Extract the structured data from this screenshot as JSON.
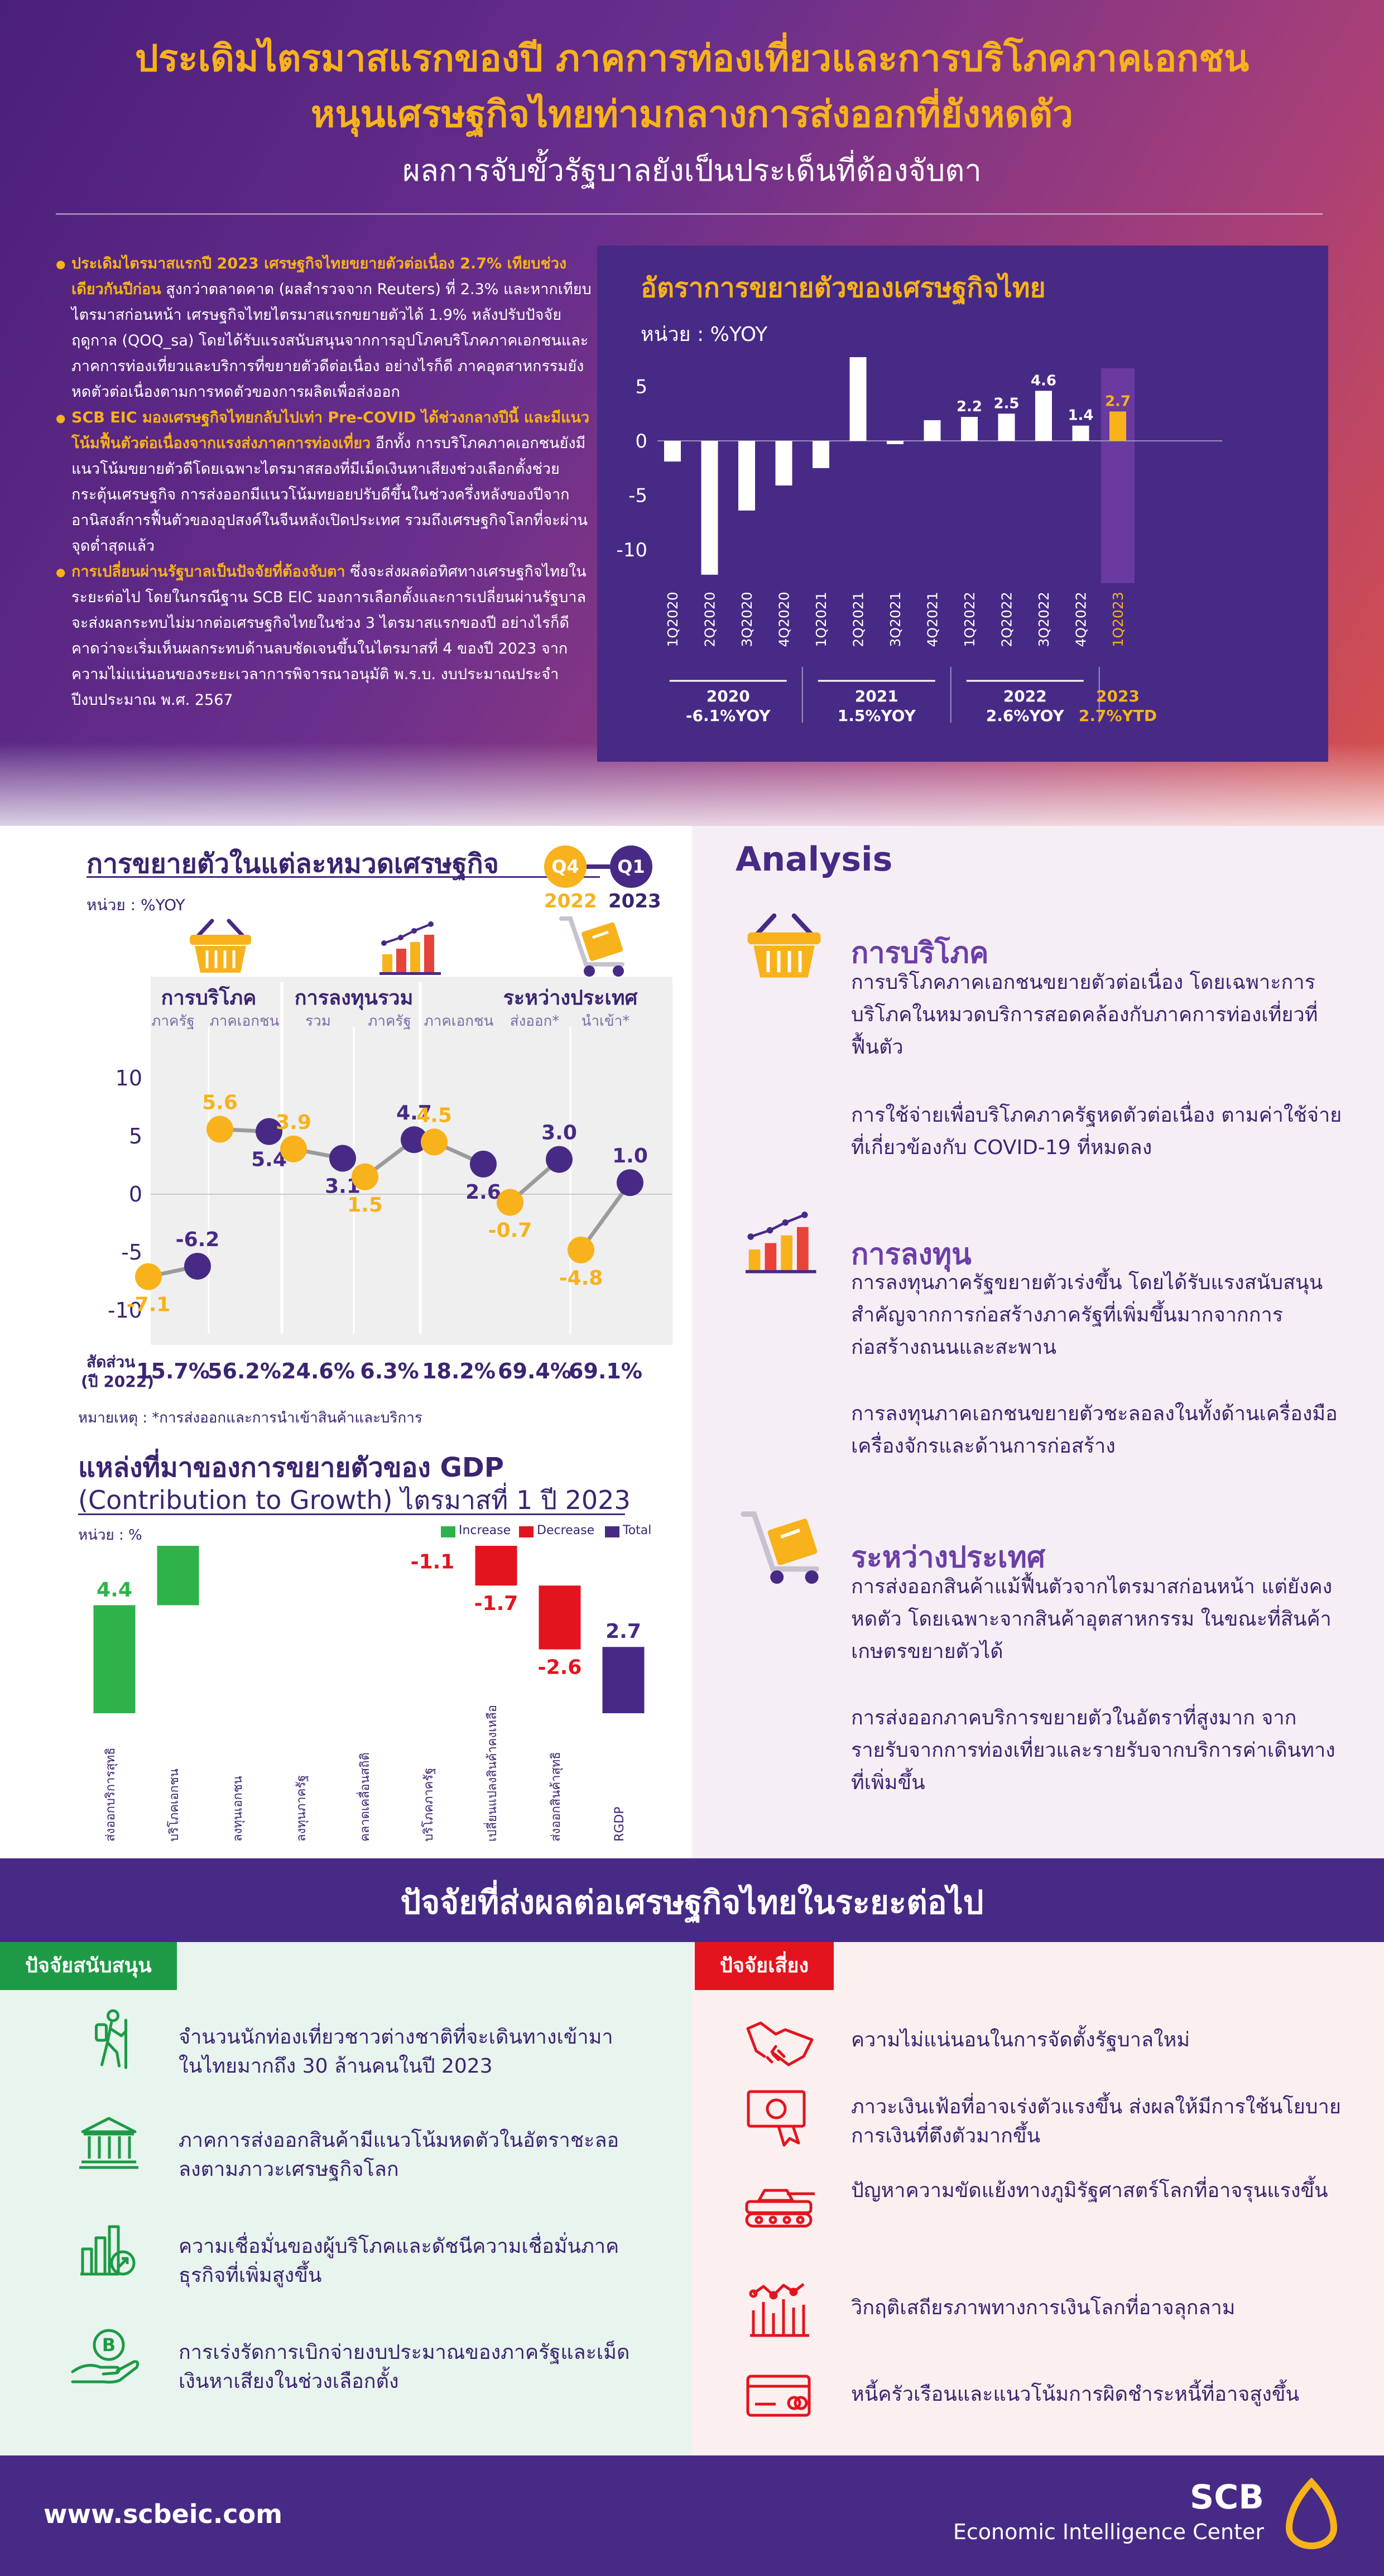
{
  "header": {
    "title_line1": "ประเดิมไตรมาสแรกของปี ภาคการท่องเที่ยวและการบริโภคภาคเอกชน",
    "title_line2": "หนุนเศรษฐกิจไทยท่ามกลางการส่งออกที่ยังหดตัว",
    "subtitle": "ผลการจับขั้วรัฐบาลยังเป็นประเด็นที่ต้องจับตา"
  },
  "bullets": [
    {
      "highlight": "ประเดิมไตรมาสแรกปี 2023 เศรษฐกิจไทยขยายตัวต่อเนื่อง 2.7% เทียบช่วงเดียวกันปีก่อน",
      "text": " สูงกว่าตลาดคาด (ผลสำรวจจาก Reuters) ที่ 2.3% และหากเทียบไตรมาสก่อนหน้า เศรษฐกิจไทยไตรมาสแรกขยายตัวได้ 1.9% หลังปรับปัจจัยฤดูกาล (QOQ_sa) โดยได้รับแรงสนับสนุนจากการอุปโภคบริโภคภาคเอกชนและภาคการท่องเที่ยวและบริการที่ขยายตัวดีต่อเนื่อง อย่างไรก็ดี ภาคอุตสาหกรรมยังหดตัวต่อเนื่องตามการหดตัวของการผลิตเพื่อส่งออก"
    },
    {
      "highlight": "SCB EIC มองเศรษฐกิจไทยกลับไปเท่า Pre-COVID ได้ช่วงกลางปีนี้ และมีแนวโน้มฟื้นตัวต่อเนื่องจากแรงส่งภาคการท่องเที่ยว",
      "text": " อีกทั้ง การบริโภคภาคเอกชนยังมีแนวโน้มขยายตัวดีโดยเฉพาะไตรมาสสองที่มีเม็ดเงินหาเสียงช่วงเลือกตั้งช่วยกระตุ้นเศรษฐกิจ การส่งออกมีแนวโน้มทยอยปรับดีขึ้นในช่วงครึ่งหลังของปีจากอานิสงส์การฟื้นตัวของอุปสงค์ในจีนหลังเปิดประเทศ รวมถึงเศรษฐกิจโลกที่จะผ่านจุดต่ำสุดแล้ว"
    },
    {
      "highlight": "การเปลี่ยนผ่านรัฐบาลเป็นปัจจัยที่ต้องจับตา",
      "text": " ซึ่งจะส่งผลต่อทิศทางเศรษฐกิจไทยในระยะต่อไป โดยในกรณีฐาน SCB EIC มองการเลือกตั้งและการเปลี่ยนผ่านรัฐบาลจะส่งผลกระทบไม่มากต่อเศรษฐกิจไทยในช่วง 3 ไตรมาสแรกของปี อย่างไรก็ดี คาดว่าจะเริ่มเห็นผลกระทบด้านลบชัดเจนขึ้นในไตรมาสที่ 4 ของปี 2023 จากความไม่แน่นอนของระยะเวลาการพิจารณาอนุมัติ พ.ร.บ. งบประมาณประจำปีงบประมาณ พ.ศ. 2567"
    }
  ],
  "chart_data": [
    {
      "type": "bar",
      "title": "อัตราการขยายตัวของเศรษฐกิจไทย",
      "unit": "หน่วย : %YOY",
      "ylim": [
        -13,
        8
      ],
      "yticks": [
        5,
        0,
        -5,
        -10
      ],
      "categories": [
        "1Q2020",
        "2Q2020",
        "3Q2020",
        "4Q2020",
        "1Q2021",
        "2Q2021",
        "3Q2021",
        "4Q2021",
        "1Q2022",
        "2Q2022",
        "3Q2022",
        "4Q2022",
        "1Q2023"
      ],
      "values": [
        -1.9,
        -12.3,
        -6.4,
        -4.1,
        -2.5,
        7.7,
        -0.3,
        1.9,
        2.2,
        2.5,
        4.6,
        1.4,
        2.7
      ],
      "data_labels": {
        "8": "2.2",
        "9": "2.5",
        "10": "4.6",
        "11": "1.4",
        "12": "2.7"
      },
      "groups": [
        {
          "year": "2020",
          "summary": "-6.1%YOY"
        },
        {
          "year": "2021",
          "summary": "1.5%YOY"
        },
        {
          "year": "2022",
          "summary": "2.6%YOY"
        },
        {
          "year": "2023",
          "summary": "2.7%YTD"
        }
      ],
      "colors": {
        "bar": "#ffffff",
        "highlight": "#f7b21c"
      }
    },
    {
      "type": "scatter",
      "title": "การขยายตัวในแต่ละหมวดเศรษฐกิจ",
      "unit": "หน่วย : %YOY",
      "legend": [
        "Q4 2022",
        "Q1 2023"
      ],
      "legend_parts": {
        "q4": "Q4",
        "q4_year": "2022",
        "q1": "Q1",
        "q1_year": "2023"
      },
      "ylim": [
        -12,
        12
      ],
      "yticks": [
        10,
        5,
        0,
        -5,
        -10
      ],
      "groups": [
        "การบริโภค",
        "การลงทุนรวม",
        "ระหว่างประเทศ"
      ],
      "categories": [
        "ภาครัฐ",
        "ภาคเอกชน",
        "รวม",
        "ภาครัฐ",
        "ภาคเอกชน",
        "ส่งออก*",
        "นำเข้า*"
      ],
      "series": [
        {
          "name": "Q4 2022",
          "values": [
            -7.1,
            5.6,
            3.9,
            1.5,
            4.5,
            -0.7,
            -4.8
          ]
        },
        {
          "name": "Q1 2023",
          "values": [
            -6.2,
            5.4,
            3.1,
            4.7,
            2.6,
            3.0,
            1.0
          ]
        }
      ],
      "share_label": "สัดส่วน (ปี 2022)",
      "share_label_line1": "สัดส่วน",
      "share_label_line2": "(ปี 2022)",
      "shares": [
        "15.7%",
        "56.2%",
        "24.6%",
        "6.3%",
        "18.2%",
        "69.4%",
        "69.1%"
      ],
      "note": "หมายเหตุ : *การส่งออกและการนำเข้าสินค้าและบริการ",
      "colors": {
        "q4": "#f7b21c",
        "q1": "#472a85"
      }
    },
    {
      "type": "bar",
      "title": "แหล่งที่มาของการขยายตัวของ GDP",
      "subtitle": "(Contribution to Growth) ไตรมาสที่ 1 ปี 2023",
      "unit": "หน่วย : %",
      "legend": [
        "Increase",
        "Decrease",
        "Total"
      ],
      "categories": [
        "ส่งออกบริการสุทธิ",
        "บริโภคเอกชน",
        "ลงทุนเอกชน",
        "ลงทุนภาครัฐ",
        "คลาดเคลื่อนสถิติ",
        "บริโภคภาครัฐ",
        "เปลี่ยนแปลงสินค้าคงเหลือ",
        "ส่งออกสินค้าสุทธิ",
        "RGDP"
      ],
      "values": [
        4.4,
        2.8,
        0.4,
        0.3,
        0.1,
        -1.1,
        -1.7,
        -2.6,
        2.7
      ],
      "colors": {
        "increase": "#2db34a",
        "decrease": "#e3141e",
        "total": "#472a85"
      }
    }
  ],
  "analysis": {
    "title": "Analysis",
    "sections": [
      {
        "heading": "การบริโภค",
        "icon": "basket-icon",
        "paragraphs": [
          "การบริโภคภาคเอกชนขยายตัวต่อเนื่อง โดยเฉพาะการบริโภคในหมวดบริการสอดคล้องกับภาคการท่องเที่ยวที่ฟื้นตัว",
          "การใช้จ่ายเพื่อบริโภคภาครัฐหดตัวต่อเนื่อง ตามค่าใช้จ่ายที่เกี่ยวข้องกับ COVID-19 ที่หมดลง"
        ]
      },
      {
        "heading": "การลงทุน",
        "icon": "investment-chart-icon",
        "paragraphs": [
          "การลงทุนภาครัฐขยายตัวเร่งขึ้น โดยได้รับแรงสนับสนุนสำคัญจากการก่อสร้างภาครัฐที่เพิ่มขึ้นมากจากการก่อสร้างถนนและสะพาน",
          "การลงทุนภาคเอกชนขยายตัวชะลอลงในทั้งด้านเครื่องมือเครื่องจักรและด้านการก่อสร้าง"
        ]
      },
      {
        "heading": "ระหว่างประเทศ",
        "icon": "cargo-cart-icon",
        "paragraphs": [
          "การส่งออกสินค้าแม้ฟื้นตัวจากไตรมาสก่อนหน้า แต่ยังคงหดตัว โดยเฉพาะจากสินค้าอุตสาหกรรม ในขณะที่สินค้าเกษตรขยายตัวได้",
          "การส่งออกภาคบริการขยายตัวในอัตราที่สูงมาก จากรายรับจากการท่องเที่ยวและรายรับจากบริการค่าเดินทางที่เพิ่มขึ้น"
        ]
      }
    ]
  },
  "factors": {
    "title": "ปัจจัยที่ส่งผลต่อเศรษฐกิจไทยในระยะต่อไป",
    "support_label": "ปัจจัยสนับสนุน",
    "risk_label": "ปัจจัยเสี่ยง",
    "support": [
      {
        "icon": "hiker-icon",
        "text": "จำนวนนักท่องเที่ยวชาวต่างชาติที่จะเดินทางเข้ามาในไทยมากถึง 30 ล้านคนในปี 2023"
      },
      {
        "icon": "bank-building-icon",
        "text": "ภาคการส่งออกสินค้ามีแนวโน้มหดตัวในอัตราชะลอลงตามภาวะเศรษฐกิจโลก"
      },
      {
        "icon": "growth-chart-icon",
        "text": "ความเชื่อมั่นของผู้บริโภคและดัชนีความเชื่อมั่นภาคธุรกิจที่เพิ่มสูงขึ้น"
      },
      {
        "icon": "coin-hand-icon",
        "text": "การเร่งรัดการเบิกจ่ายงบประมาณของภาครัฐและเม็ดเงินหาเสียงในช่วงเลือกตั้ง"
      }
    ],
    "risk": [
      {
        "icon": "handshake-icon",
        "text": "ความไม่แน่นอนในการจัดตั้งรัฐบาลใหม่"
      },
      {
        "icon": "inflation-icon",
        "text": "ภาวะเงินเฟ้อที่อาจเร่งตัวแรงขึ้น ส่งผลให้มีการใช้นโยบายการเงินที่ตึงตัวมากขึ้น"
      },
      {
        "icon": "tank-icon",
        "text": "ปัญหาความขัดแย้งทางภูมิรัฐศาสตร์โลกที่อาจรุนแรงขึ้น"
      },
      {
        "icon": "financial-crisis-icon",
        "text": "วิกฤติเสถียรภาพทางการเงินโลกที่อาจลุกลาม"
      },
      {
        "icon": "credit-card-icon",
        "text": "หนี้ครัวเรือนและแนวโน้มการผิดชำระหนี้ที่อาจสูงขึ้น"
      }
    ]
  },
  "footer": {
    "url": "www.scbeic.com",
    "brand": "SCB",
    "brand_sub": "Economic Intelligence Center"
  }
}
